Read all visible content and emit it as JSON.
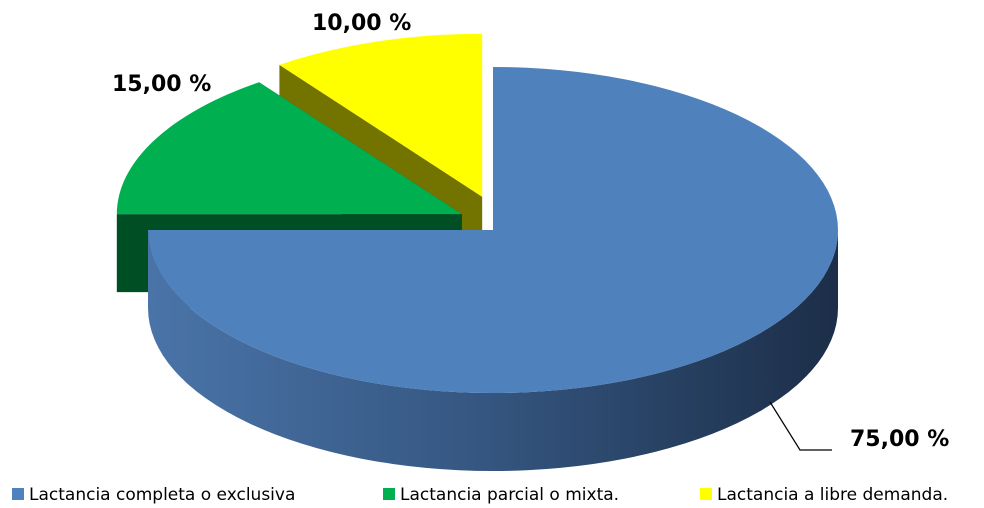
{
  "chart_data": {
    "type": "pie",
    "categories": [
      "Lactancia completa o exclusiva",
      "Lactancia parcial o mixta.",
      "Lactancia a libre demanda."
    ],
    "values": [
      75,
      15,
      10
    ],
    "value_labels": [
      "75,00 %",
      "15,00 %",
      "10,00 %"
    ],
    "colors": [
      "#4f81bd",
      "#00b050",
      "#ffff00"
    ],
    "legend": "bottom"
  }
}
